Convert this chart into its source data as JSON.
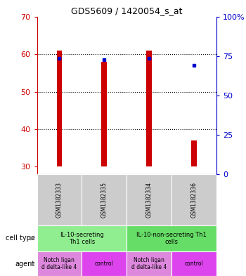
{
  "title": "GDS5609 / 1420054_s_at",
  "samples": [
    "GSM1382333",
    "GSM1382335",
    "GSM1382334",
    "GSM1382336"
  ],
  "count_values": [
    61,
    58,
    61,
    37
  ],
  "count_base": [
    30,
    30,
    30,
    30
  ],
  "percentile_values": [
    73.5,
    72.5,
    73.5,
    69
  ],
  "ylim_left": [
    28,
    70
  ],
  "ylim_right": [
    0,
    100
  ],
  "yticks_left": [
    30,
    40,
    50,
    60,
    70
  ],
  "yticks_right": [
    0,
    25,
    50,
    75,
    100
  ],
  "bar_color": "#cc0000",
  "dot_color": "#0000cc",
  "gsm_bg_color": "#cccccc",
  "left_axis_color": "#cc0000",
  "right_axis_color": "#0000cc",
  "cell_type_color_1": "#90ee90",
  "cell_type_color_2": "#66dd66",
  "agent_color_notch": "#dd88dd",
  "agent_color_control": "#dd44ee",
  "bar_width": 0.12
}
